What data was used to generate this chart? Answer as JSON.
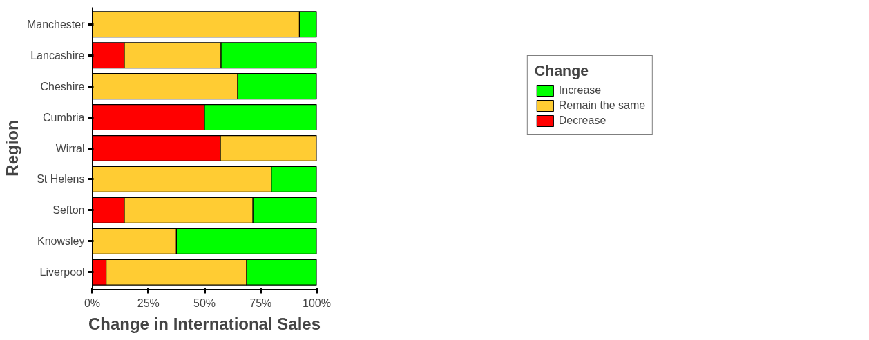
{
  "chart_data": {
    "type": "bar",
    "orientation": "horizontal",
    "stacked": true,
    "xlabel": "Change in International Sales",
    "ylabel": "Region",
    "legend_title": "Change",
    "categories": [
      "Manchester",
      "Lancashire",
      "Cheshire",
      "Cumbria",
      "Wirral",
      "St Helens",
      "Sefton",
      "Knowsley",
      "Liverpool"
    ],
    "series": [
      {
        "name": "Decrease",
        "color": "#ff0000",
        "values": [
          0,
          14.3,
          0,
          50,
          57.1,
          0,
          14.3,
          0,
          6.2
        ]
      },
      {
        "name": "Remain the same",
        "color": "#ffcc33",
        "values": [
          92.3,
          43.1,
          64.8,
          0,
          42.9,
          79.8,
          57.3,
          37.5,
          62.6
        ]
      },
      {
        "name": "Increase",
        "color": "#00ff00",
        "values": [
          7.7,
          42.6,
          35.2,
          50,
          0,
          20.2,
          28.4,
          62.5,
          31.2
        ]
      }
    ],
    "xlim": [
      0,
      100
    ],
    "xticks": [
      {
        "value": 0,
        "label": "0%"
      },
      {
        "value": 25,
        "label": "25%"
      },
      {
        "value": 50,
        "label": "50%"
      },
      {
        "value": 75,
        "label": "75%"
      },
      {
        "value": 100,
        "label": "100%"
      }
    ],
    "grid": false,
    "legend": "top right"
  }
}
